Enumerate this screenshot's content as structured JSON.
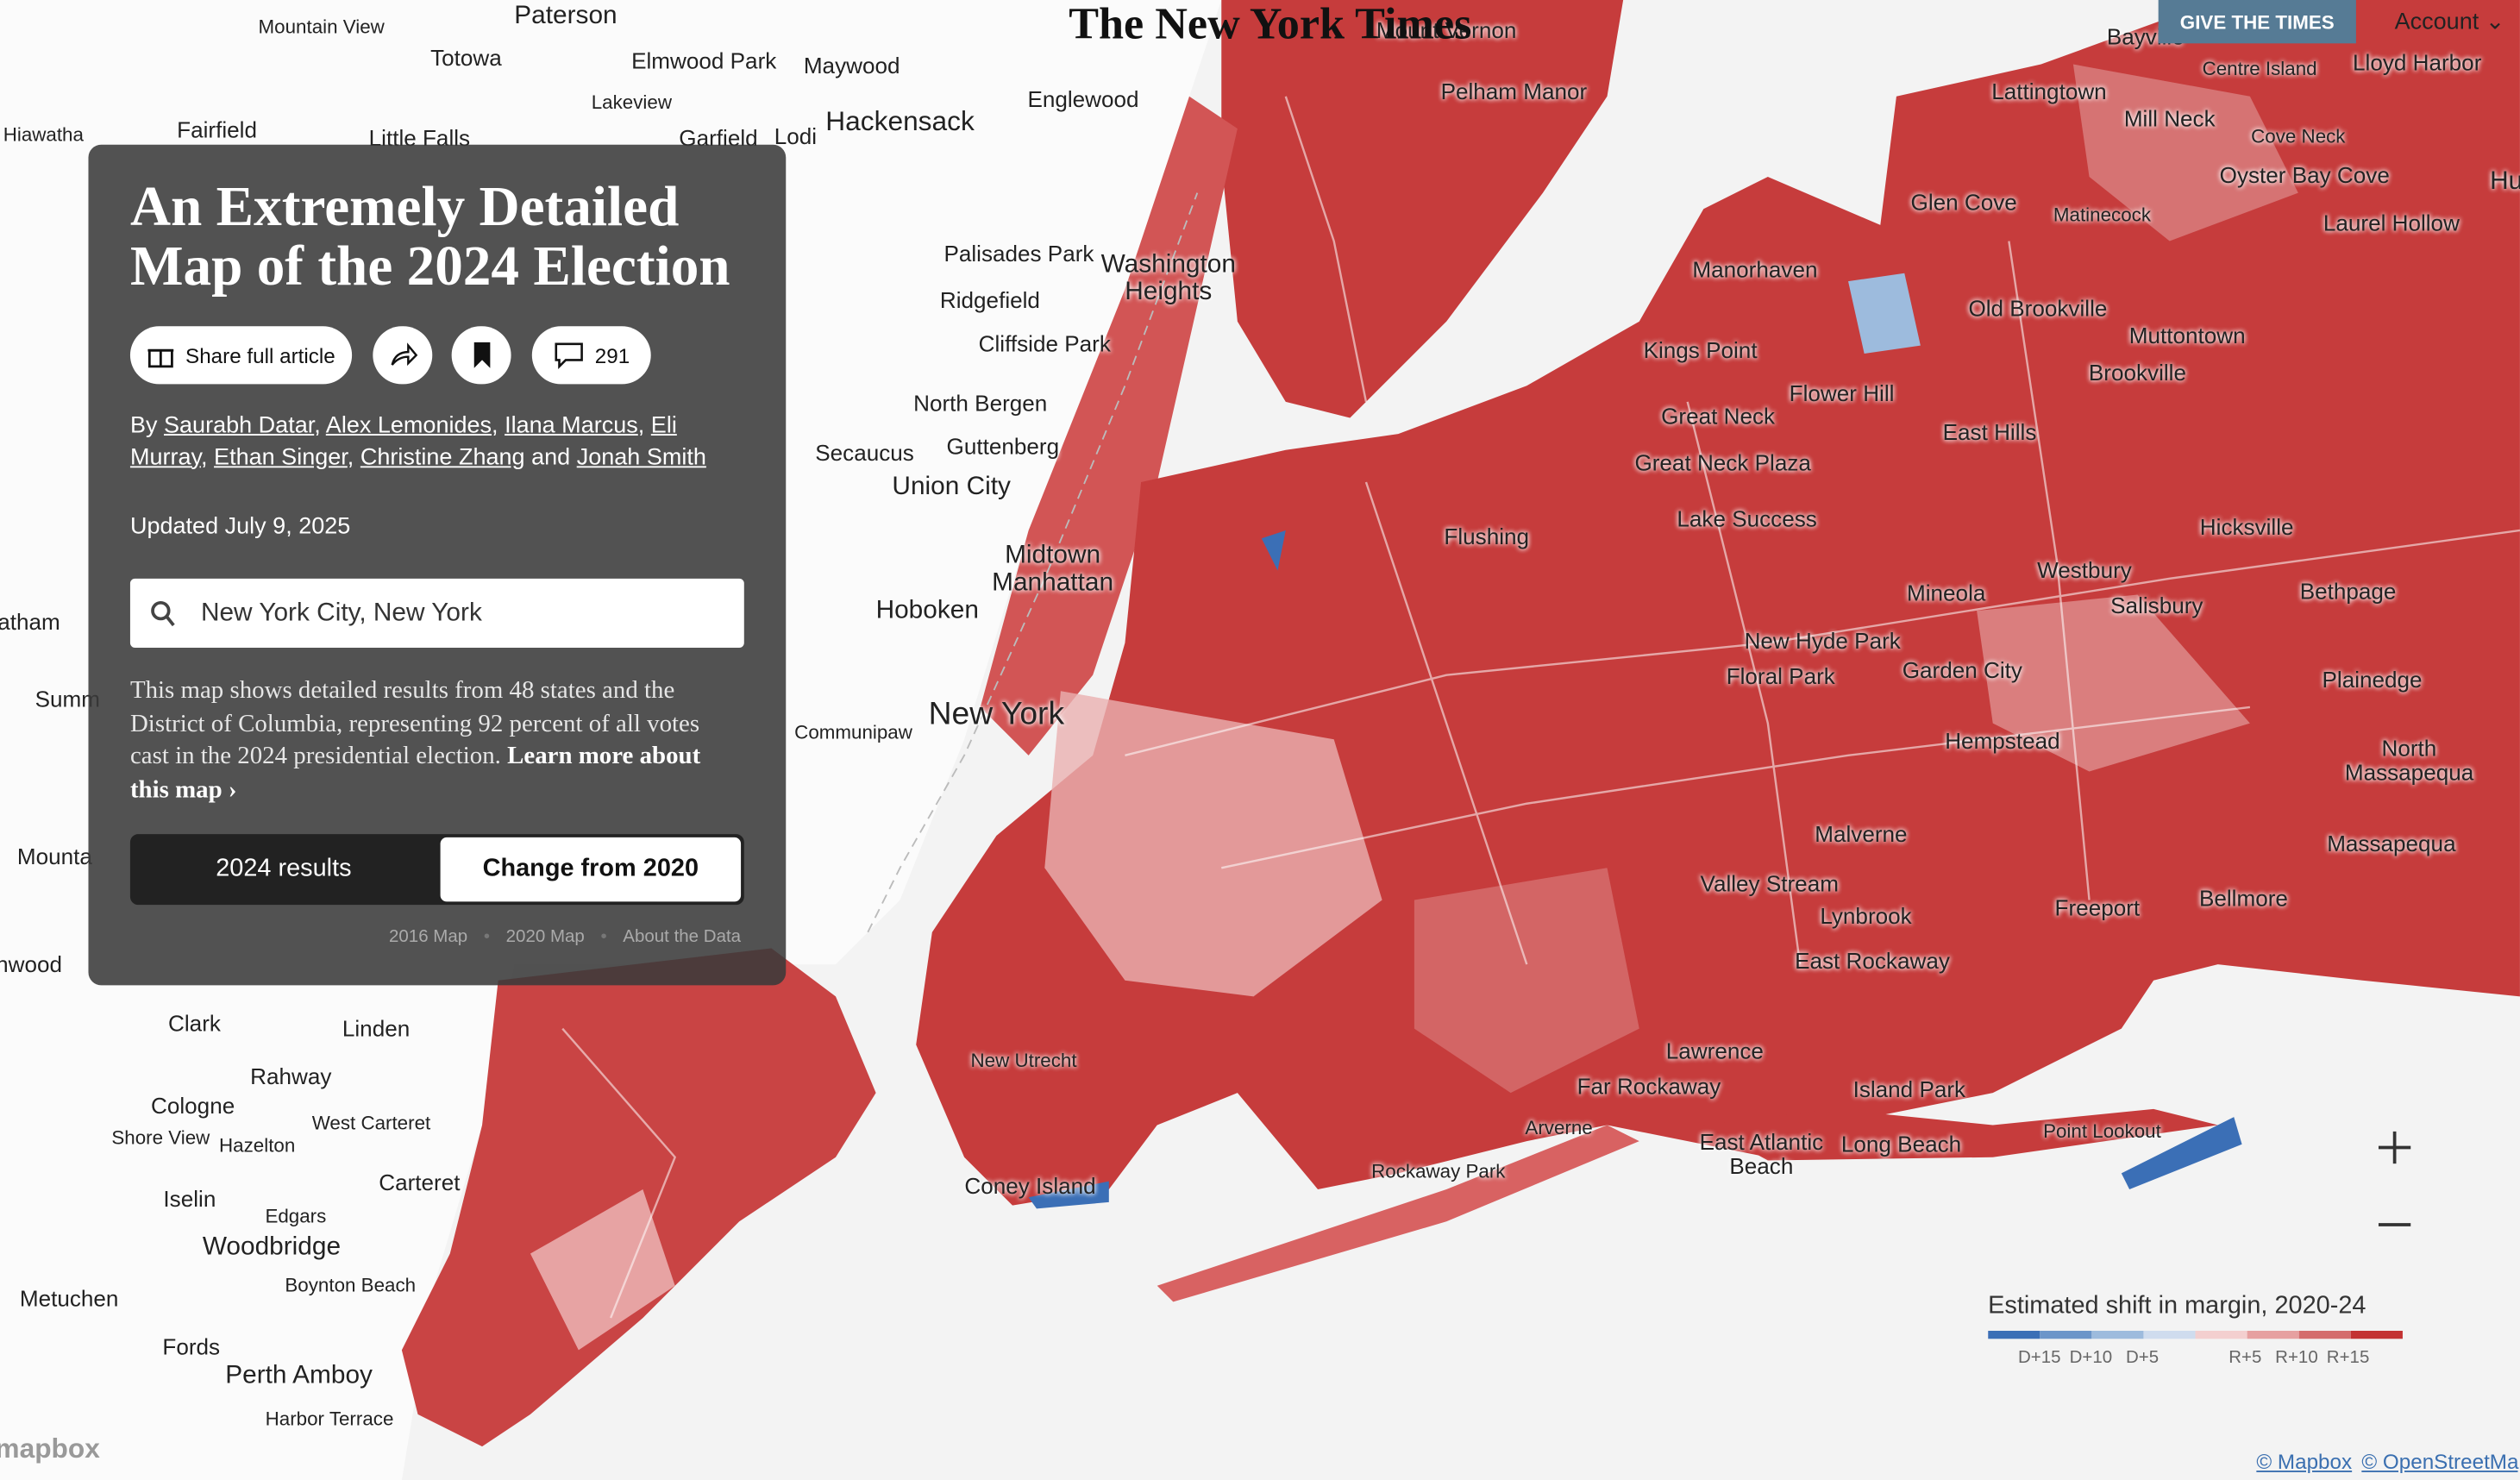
{
  "header": {
    "logo": "The New York Times",
    "give_button": "GIVE THE TIMES",
    "account": "Account"
  },
  "panel": {
    "title": "An Extremely Detailed Map of the 2024 Election",
    "share": "Share full article",
    "comments": "291",
    "by": "By",
    "authors": [
      "Saurabh Datar",
      "Alex Lemonides",
      "Ilana Marcus",
      "Eli Murray",
      "Ethan Singer",
      "Christine Zhang",
      "Jonah Smith"
    ],
    "separator": ",",
    "and": "and",
    "updated": "Updated July 9, 2025",
    "search": "New York City, New York",
    "description": "This map shows detailed results from 48 states and the District of Columbia, representing 92 percent of all votes cast in the 2024 presidential election.",
    "learn_more": "Learn more about this map ›",
    "toggle": [
      "2024 results",
      "Change from 2020"
    ],
    "links": [
      "2016 Map",
      "2020 Map",
      "About the Data"
    ],
    "link_dot": "•"
  },
  "map": {
    "labels": [
      "Paterson",
      "Mountain View",
      "Totowa",
      "Elmwood Park",
      "Maywood",
      "Lakeview",
      "Hackensack",
      "Englewood",
      "Garfield",
      "Lodi",
      "Fairfield",
      "Little Falls",
      "Hiawatha",
      "Palisades Park",
      "Washington Heights",
      "Ridgefield",
      "Cliffside Park",
      "North Bergen",
      "Secaucus",
      "Guttenberg",
      "Union City",
      "Midtown Manhattan",
      "Hoboken",
      "New York",
      "Communipaw",
      "Mount Vernon",
      "Pelham Manor",
      "Manorhaven",
      "Kings Point",
      "Flower Hill",
      "Great Neck",
      "Great Neck Plaza",
      "Lake Success",
      "Flushing",
      "Glen Cove",
      "Matinecock",
      "Old Brookville",
      "Muttontown",
      "Brookville",
      "East Hills",
      "Lattingtown",
      "Mill Neck",
      "Centre Island",
      "Lloyd Harbor",
      "Bayville",
      "Cove Neck",
      "Oyster Bay Cove",
      "Laurel Hollow",
      "Huntington",
      "Hicksville",
      "Westbury",
      "Salisbury",
      "Mineola",
      "Bethpage",
      "New Hyde Park",
      "Floral Park",
      "Garden City",
      "Plainedge",
      "Hempstead",
      "North Massapequa",
      "Malverne",
      "Massapequa",
      "Valley Stream",
      "Lynbrook",
      "Freeport",
      "Bellmore",
      "East Rockaway",
      "Lawrence",
      "Far Rockaway",
      "Island Park",
      "Arverne",
      "East Atlantic Beach",
      "Long Beach",
      "Point Lookout",
      "Rockaway Park",
      "Coney Island",
      "New Utrecht",
      "Clark",
      "Linden",
      "Rahway",
      "Cologne",
      "West Carteret",
      "Shore View",
      "Hazelton",
      "Carteret",
      "Iselin",
      "Edgars",
      "Woodbridge",
      "Boynton Beach",
      "Metuchen",
      "Fords",
      "Perth Amboy",
      "Harbor Terrace",
      "Summ",
      "Mounta",
      "nwood",
      "atham"
    ],
    "legend_title": "Estimated shift in margin, 2020-24",
    "legend_colors": [
      "#3b6fb6",
      "#6b95c9",
      "#9dbbdd",
      "#cfdcee",
      "#f3cfcf",
      "#e6a0a0",
      "#d46c6c",
      "#c33232"
    ],
    "legend_ticks": [
      "D+15",
      "D+10",
      "D+5",
      "R+5",
      "R+10",
      "R+15"
    ],
    "attribution": [
      "© Mapbox",
      "© OpenStreetMap"
    ],
    "mapbox": "mapbox"
  }
}
